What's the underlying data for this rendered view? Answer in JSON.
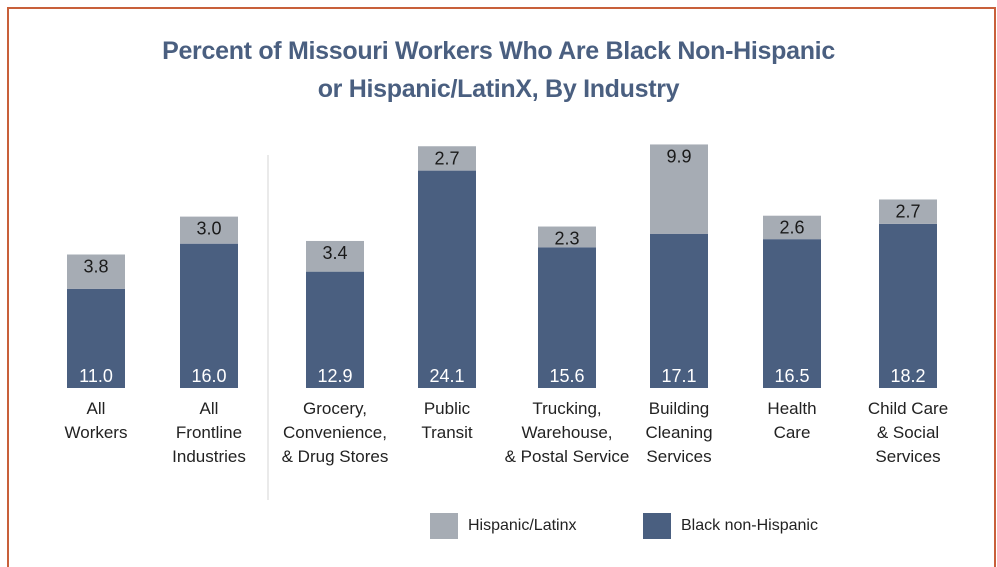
{
  "chart_data": {
    "type": "bar",
    "stacked": true,
    "title_lines": [
      "Percent of Missouri Workers Who Are Black Non-Hispanic",
      "or Hispanic/LatinX, By Industry"
    ],
    "categories": [
      [
        "All",
        "Workers"
      ],
      [
        "All",
        "Frontline",
        "Industries"
      ],
      [
        "Grocery,",
        "Convenience,",
        "& Drug Stores"
      ],
      [
        "Public",
        "Transit"
      ],
      [
        "Trucking,",
        "Warehouse,",
        "& Postal Service"
      ],
      [
        "Building",
        "Cleaning",
        "Services"
      ],
      [
        "Health",
        "Care"
      ],
      [
        "Child Care",
        "& Social",
        "Services"
      ]
    ],
    "series": [
      {
        "name": "Black non-Hispanic",
        "values": [
          11.0,
          16.0,
          12.9,
          24.1,
          15.6,
          17.1,
          16.5,
          18.2
        ],
        "color": "#4a5f80"
      },
      {
        "name": "Hispanic/Latinx",
        "values": [
          3.8,
          3.0,
          3.4,
          2.7,
          2.3,
          9.9,
          2.6,
          2.7
        ],
        "color": "#a6acb4"
      }
    ],
    "labels": [
      [
        "11.0",
        "16.0",
        "12.9",
        "24.1",
        "15.6",
        "17.1",
        "16.5",
        "18.2"
      ],
      [
        "3.8",
        "3.0",
        "3.4",
        "2.7",
        "2.3",
        "9.9",
        "2.6",
        "2.7"
      ]
    ],
    "ylim": [
      0,
      27
    ],
    "grid": false,
    "legend_position": "bottom",
    "separator_after_category": 1
  },
  "legend": {
    "hispanic": "Hispanic/Latinx",
    "black": "Black non-Hispanic",
    "hispanic_color": "#a6acb4",
    "black_color": "#4a5f80"
  }
}
